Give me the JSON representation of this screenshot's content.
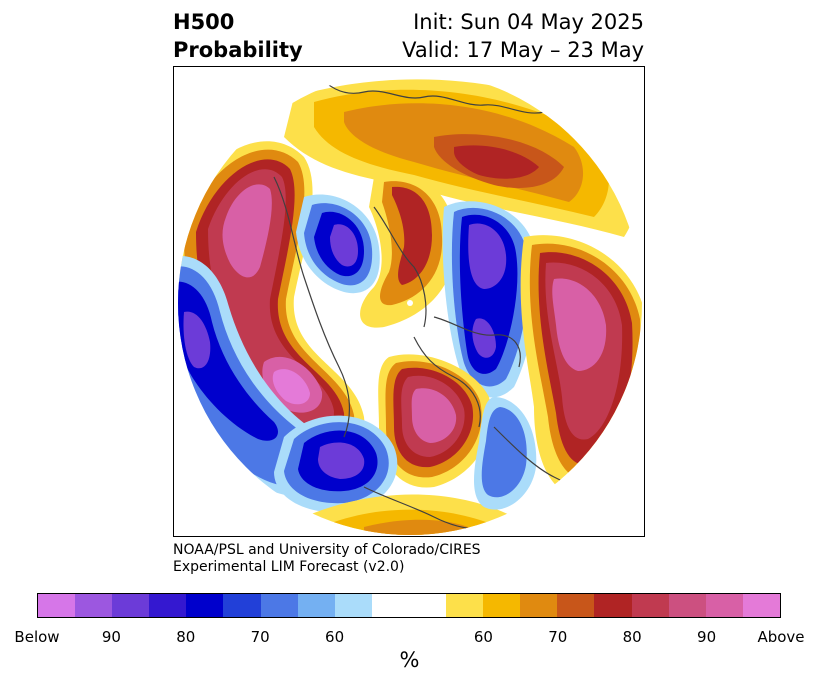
{
  "title": {
    "left_line1": "H500",
    "left_line2": "Probability",
    "right_line1": "Init: Sun 04 May 2025",
    "right_line2": "Valid: 17 May – 23 May"
  },
  "credit": {
    "line1": "NOAA/PSL and University of Colorado/CIRES",
    "line2": "Experimental LIM Forecast (v2.0)"
  },
  "colorbar": {
    "unit": "%",
    "tick_labels": [
      "Below",
      "90",
      "80",
      "70",
      "60",
      "60",
      "70",
      "80",
      "90",
      "Above"
    ],
    "colors": [
      "#d676e8",
      "#9c57e0",
      "#6c3bd8",
      "#3418d0",
      "#0000cc",
      "#2240d8",
      "#4c78e6",
      "#74b0f2",
      "#aadcfa",
      "#ffffff",
      "#fde04a",
      "#f5b800",
      "#e08a10",
      "#c8561a",
      "#b02424",
      "#c03a50",
      "#cc5080",
      "#d860a6",
      "#e47ad8"
    ]
  },
  "map": {
    "projection": "north polar stereographic",
    "field": "500 hPa height anomaly probability",
    "colors": {
      "above_light": "#fde04a",
      "above_mid": "#f5b800",
      "above_dark": "#e08a10",
      "above_red": "#b02424",
      "above_crimson": "#c03a50",
      "above_pink": "#d860a6",
      "below_light": "#aadcfa",
      "below_mid": "#4c78e6",
      "below_dark": "#0000cc",
      "below_purple": "#6c3bd8",
      "coastline": "#404040"
    }
  }
}
